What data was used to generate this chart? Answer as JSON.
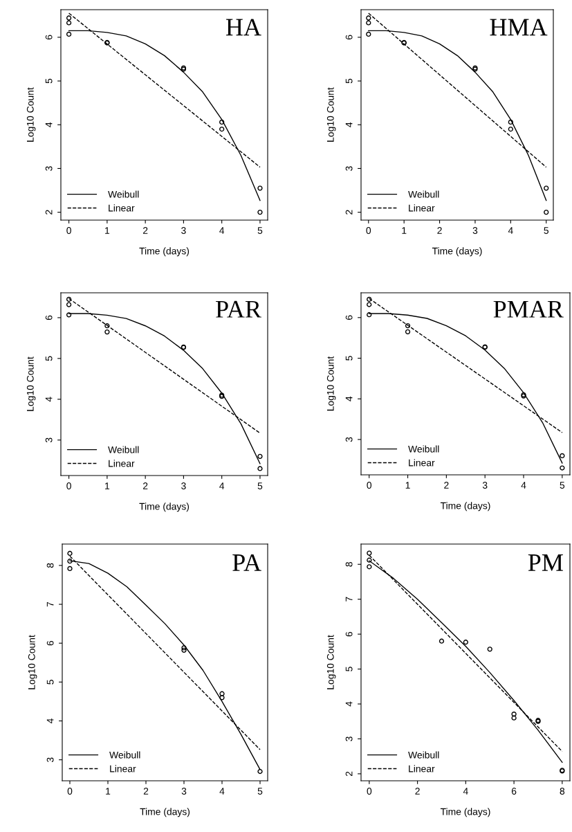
{
  "chart_data": [
    {
      "type": "line",
      "title": "HA",
      "xlabel": "Time (days)",
      "ylabel": "Log10 Count",
      "xlim": [
        -0.21,
        5.2
      ],
      "ylim": [
        1.82,
        6.63
      ],
      "xticks": [
        0,
        1,
        2,
        3,
        4,
        5
      ],
      "yticks": [
        2,
        3,
        4,
        5,
        6
      ],
      "grid": false,
      "legend": "bottom left",
      "series": [
        {
          "type": "scatter",
          "marker": "circle",
          "color": "#000000",
          "x": [
            0,
            0,
            0,
            1,
            1,
            3,
            3,
            4,
            4,
            5,
            5
          ],
          "values": [
            6.07,
            6.33,
            6.44,
            5.87,
            5.88,
            5.27,
            5.3,
            4.06,
            3.9,
            2.55,
            2.0
          ]
        },
        {
          "name": "Weibull",
          "type": "line",
          "line_style": "solid",
          "color": "#000000",
          "x": [
            0,
            0.5,
            1,
            1.5,
            2,
            2.5,
            3,
            3.5,
            4,
            4.5,
            5
          ],
          "values": [
            6.15,
            6.15,
            6.11,
            6.03,
            5.85,
            5.58,
            5.2,
            4.75,
            4.12,
            3.3,
            2.27
          ]
        },
        {
          "name": "Linear",
          "type": "line",
          "line_style": "dashed",
          "color": "#000000",
          "x": [
            0,
            5
          ],
          "values": [
            6.55,
            3.03
          ]
        }
      ]
    },
    {
      "type": "line",
      "title": "HMA",
      "xlabel": "Time (days)",
      "ylabel": "Log10 Count",
      "xlim": [
        -0.21,
        5.2
      ],
      "ylim": [
        1.82,
        6.63
      ],
      "xticks": [
        0,
        1,
        2,
        3,
        4,
        5
      ],
      "yticks": [
        2,
        3,
        4,
        5,
        6
      ],
      "grid": false,
      "legend": "bottom left",
      "series": [
        {
          "type": "scatter",
          "marker": "circle",
          "color": "#000000",
          "x": [
            0,
            0,
            0,
            1,
            1,
            3,
            3,
            4,
            4,
            5,
            5
          ],
          "values": [
            6.07,
            6.33,
            6.44,
            5.87,
            5.88,
            5.27,
            5.3,
            4.06,
            3.9,
            2.55,
            2.0
          ]
        },
        {
          "name": "Weibull",
          "type": "line",
          "line_style": "solid",
          "color": "#000000",
          "x": [
            0,
            0.5,
            1,
            1.5,
            2,
            2.5,
            3,
            3.5,
            4,
            4.5,
            5
          ],
          "values": [
            6.15,
            6.15,
            6.11,
            6.03,
            5.85,
            5.58,
            5.2,
            4.75,
            4.12,
            3.3,
            2.27
          ]
        },
        {
          "name": "Linear",
          "type": "line",
          "line_style": "dashed",
          "color": "#000000",
          "x": [
            0,
            5
          ],
          "values": [
            6.55,
            3.03
          ]
        }
      ]
    },
    {
      "type": "line",
      "title": "PAR",
      "xlabel": "Time (days)",
      "ylabel": "Log10 Count",
      "xlim": [
        -0.21,
        5.2
      ],
      "ylim": [
        2.13,
        6.61
      ],
      "xticks": [
        0,
        1,
        2,
        3,
        4,
        5
      ],
      "yticks": [
        3,
        4,
        5,
        6
      ],
      "grid": false,
      "legend": "bottom left",
      "series": [
        {
          "type": "scatter",
          "marker": "circle",
          "color": "#000000",
          "x": [
            0,
            0,
            0,
            1,
            1,
            3,
            3,
            4,
            4,
            5,
            5
          ],
          "values": [
            6.07,
            6.32,
            6.45,
            5.8,
            5.65,
            5.27,
            5.28,
            4.1,
            4.07,
            2.6,
            2.3
          ]
        },
        {
          "name": "Weibull",
          "type": "line",
          "line_style": "solid",
          "color": "#000000",
          "x": [
            0,
            0.5,
            1,
            1.5,
            2,
            2.5,
            3,
            3.5,
            4,
            4.5,
            5
          ],
          "values": [
            6.1,
            6.1,
            6.06,
            5.98,
            5.8,
            5.55,
            5.2,
            4.75,
            4.15,
            3.4,
            2.42
          ]
        },
        {
          "name": "Linear",
          "type": "line",
          "line_style": "dashed",
          "color": "#000000",
          "x": [
            0,
            5
          ],
          "values": [
            6.47,
            3.17
          ]
        }
      ]
    },
    {
      "type": "line",
      "title": "PMAR",
      "xlabel": "Time (days)",
      "ylabel": "Log10 Count",
      "xlim": [
        -0.21,
        5.2
      ],
      "ylim": [
        2.13,
        6.61
      ],
      "xticks": [
        0,
        1,
        2,
        3,
        4,
        5
      ],
      "yticks": [
        3,
        4,
        5,
        6
      ],
      "grid": false,
      "legend": "bottom left",
      "series": [
        {
          "type": "scatter",
          "marker": "circle",
          "color": "#000000",
          "x": [
            0,
            0,
            0,
            1,
            1,
            3,
            3,
            4,
            4,
            5,
            5
          ],
          "values": [
            6.07,
            6.32,
            6.45,
            5.8,
            5.65,
            5.27,
            5.28,
            4.1,
            4.07,
            2.6,
            2.3
          ]
        },
        {
          "name": "Weibull",
          "type": "line",
          "line_style": "solid",
          "color": "#000000",
          "x": [
            0,
            0.5,
            1,
            1.5,
            2,
            2.5,
            3,
            3.5,
            4,
            4.5,
            5
          ],
          "values": [
            6.1,
            6.1,
            6.06,
            5.98,
            5.8,
            5.55,
            5.2,
            4.75,
            4.15,
            3.4,
            2.42
          ]
        },
        {
          "name": "Linear",
          "type": "line",
          "line_style": "dashed",
          "color": "#000000",
          "x": [
            0,
            5
          ],
          "values": [
            6.47,
            3.17
          ]
        }
      ]
    },
    {
      "type": "line",
      "title": "PA",
      "xlabel": "Time (days)",
      "ylabel": "Log10 Count",
      "xlim": [
        -0.2,
        5.2
      ],
      "ylim": [
        2.46,
        8.55
      ],
      "xticks": [
        0,
        1,
        2,
        3,
        4,
        5
      ],
      "yticks": [
        3,
        4,
        5,
        6,
        7,
        8
      ],
      "grid": false,
      "legend": "bottom left",
      "series": [
        {
          "type": "scatter",
          "marker": "circle",
          "color": "#000000",
          "x": [
            0,
            0,
            0,
            3,
            3,
            4,
            4,
            5
          ],
          "values": [
            8.31,
            8.11,
            7.92,
            5.88,
            5.82,
            4.7,
            4.6,
            2.7
          ]
        },
        {
          "name": "Weibull",
          "type": "line",
          "line_style": "solid",
          "color": "#000000",
          "x": [
            0,
            0.5,
            1,
            1.5,
            2,
            2.5,
            3,
            3.5,
            4,
            4.5,
            5
          ],
          "values": [
            8.12,
            8.05,
            7.8,
            7.45,
            6.98,
            6.5,
            5.95,
            5.3,
            4.5,
            3.65,
            2.75
          ]
        },
        {
          "name": "Linear",
          "type": "line",
          "line_style": "dashed",
          "color": "#000000",
          "x": [
            0,
            5
          ],
          "values": [
            8.24,
            3.26
          ]
        }
      ]
    },
    {
      "type": "line",
      "title": "PM",
      "xlabel": "Time (days)",
      "ylabel": "Log10 Count",
      "xlim": [
        -0.34,
        8.32
      ],
      "ylim": [
        1.8,
        8.58
      ],
      "xticks": [
        0,
        2,
        4,
        6,
        8
      ],
      "yticks": [
        2,
        3,
        4,
        5,
        6,
        7,
        8
      ],
      "grid": false,
      "legend": "bottom left",
      "series": [
        {
          "type": "scatter",
          "marker": "circle",
          "color": "#000000",
          "x": [
            0,
            0,
            0,
            3,
            4,
            5,
            6,
            6,
            7,
            7,
            8,
            8
          ],
          "values": [
            8.32,
            8.12,
            7.93,
            5.8,
            5.77,
            5.57,
            3.71,
            3.6,
            3.53,
            3.5,
            2.08,
            2.1
          ]
        },
        {
          "name": "Weibull",
          "type": "line",
          "line_style": "solid",
          "color": "#000000",
          "x": [
            0,
            1,
            2,
            3,
            4,
            5,
            6,
            7,
            8
          ],
          "values": [
            8.1,
            7.6,
            7.0,
            6.33,
            5.65,
            4.9,
            4.1,
            3.25,
            2.33
          ]
        },
        {
          "name": "Linear",
          "type": "line",
          "line_style": "dashed",
          "color": "#000000",
          "x": [
            0,
            8
          ],
          "values": [
            8.26,
            2.64
          ]
        }
      ]
    }
  ]
}
